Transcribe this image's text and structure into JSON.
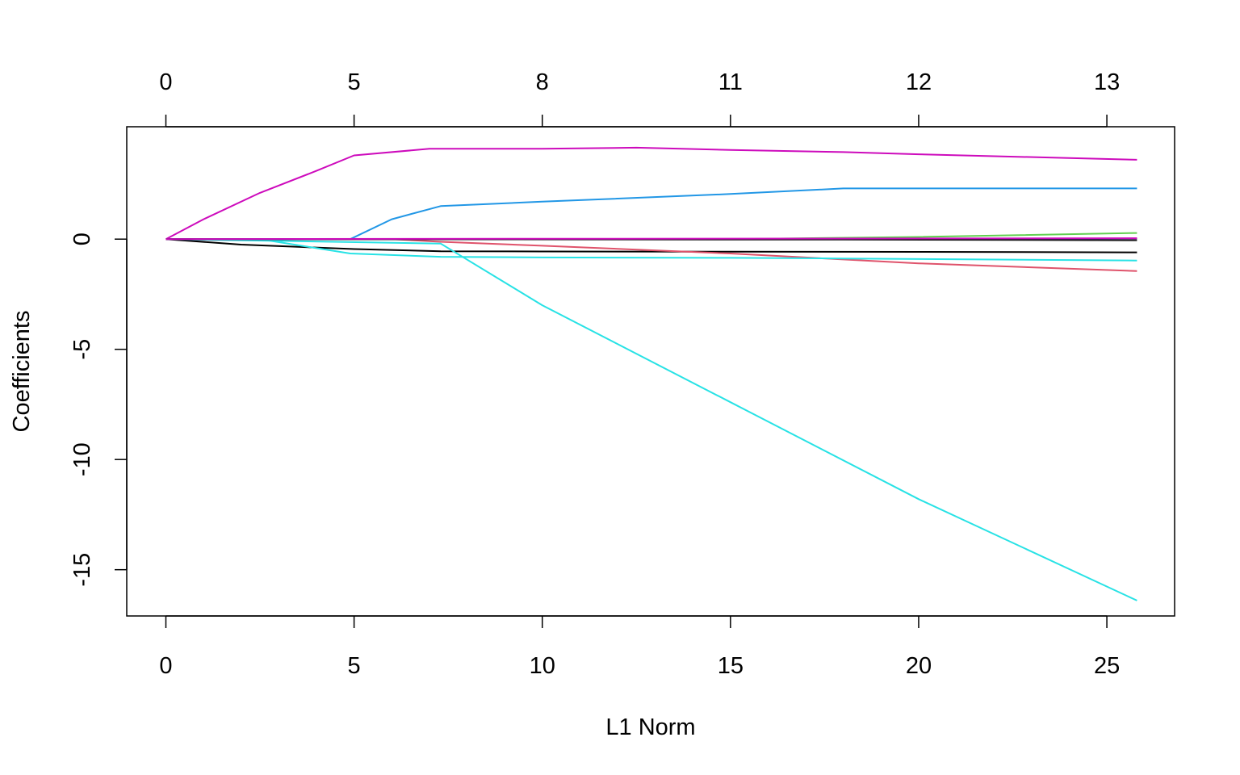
{
  "chart_data": {
    "type": "line",
    "title": "",
    "xlabel": "L1 Norm",
    "ylabel": "Coefficients",
    "xlim": [
      -1.04,
      26.8
    ],
    "ylim": [
      -17.1,
      5.1
    ],
    "x_ticks": [
      0,
      5,
      10,
      15,
      20,
      25
    ],
    "x_tick_labels": [
      "0",
      "5",
      "10",
      "15",
      "20",
      "25"
    ],
    "y_ticks": [
      0,
      -5,
      -10,
      -15
    ],
    "y_tick_labels": [
      "0",
      "-5",
      "-10",
      "-15"
    ],
    "top_axis": {
      "positions": [
        0,
        5,
        10,
        15,
        20,
        25
      ],
      "labels": [
        "0",
        "5",
        "8",
        "11",
        "12",
        "13"
      ]
    },
    "grid": false,
    "legend": "none",
    "series": [
      {
        "color": "#000000",
        "x": [
          0,
          2,
          5,
          7.3,
          10,
          15,
          20,
          25.8
        ],
        "y": [
          0,
          -0.25,
          -0.45,
          -0.55,
          -0.56,
          -0.57,
          -0.58,
          -0.6
        ]
      },
      {
        "color": "#DF536B",
        "x": [
          0,
          6,
          7.3,
          10,
          15,
          20,
          25.8
        ],
        "y": [
          0,
          0,
          -0.12,
          -0.3,
          -0.65,
          -1.1,
          -1.45
        ]
      },
      {
        "color": "#61D04F",
        "x": [
          0,
          15,
          20,
          25.8
        ],
        "y": [
          0,
          0,
          0.1,
          0.28
        ]
      },
      {
        "color": "#2297E6",
        "x": [
          0,
          4.9,
          6,
          7.3,
          10,
          15,
          18,
          25.8
        ],
        "y": [
          0,
          0,
          0.9,
          1.5,
          1.7,
          2.05,
          2.3,
          2.3
        ]
      },
      {
        "color": "#28E2E5",
        "x": [
          0,
          2.5,
          4.9,
          7.3,
          10,
          15,
          18,
          25.8
        ],
        "y": [
          0,
          0,
          -0.65,
          -0.8,
          -0.83,
          -0.85,
          -0.88,
          -0.97
        ]
      },
      {
        "color": "#CD0BBC",
        "x": [
          0,
          1,
          2.5,
          4,
          5,
          7,
          10,
          12.5,
          15,
          18,
          20,
          25.8
        ],
        "y": [
          0,
          0.9,
          2.1,
          3.1,
          3.8,
          4.1,
          4.1,
          4.15,
          4.05,
          3.95,
          3.85,
          3.6
        ]
      },
      {
        "color": "#28E2E5",
        "x": [
          0,
          7.3,
          10,
          15,
          20,
          25.8
        ],
        "y": [
          0,
          -0.2,
          -3.0,
          -7.4,
          -11.8,
          -16.4
        ]
      },
      {
        "color": "#9E9E9E",
        "x": [
          0,
          20,
          25.8
        ],
        "y": [
          0,
          0,
          0.02
        ]
      },
      {
        "color": "#3F2D8A",
        "x": [
          0,
          20,
          25.8
        ],
        "y": [
          0,
          0,
          0.03
        ]
      },
      {
        "color": "#1B1B1B",
        "x": [
          0,
          18,
          25.8
        ],
        "y": [
          0,
          -0.02,
          -0.05
        ]
      },
      {
        "color": "#CD0BBC",
        "x": [
          0,
          25.8
        ],
        "y": [
          0,
          0.04
        ]
      }
    ]
  }
}
